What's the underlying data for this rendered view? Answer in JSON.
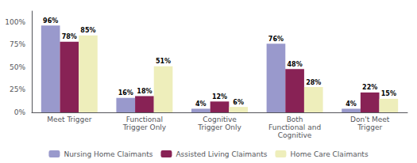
{
  "chart_data": {
    "type": "bar",
    "categories": [
      "Meet Trigger",
      "Functional\nTrigger Only",
      "Cognitive\nTrigger Only",
      "Both\nFunctional and\nCognitive",
      "Don't Meet\nTrigger"
    ],
    "series": [
      {
        "name": "Nursing Home Claimants",
        "color": "#9999CC",
        "values": [
          96,
          16,
          4,
          76,
          4
        ],
        "value_labels": [
          "96%",
          "16%",
          "4%",
          "76%",
          "4%"
        ]
      },
      {
        "name": "Assisted Living Claimants",
        "color": "#882255",
        "values": [
          78,
          18,
          12,
          48,
          22
        ],
        "value_labels": [
          "78%",
          "18%",
          "12%",
          "48%",
          "22%"
        ]
      },
      {
        "name": "Home Care Claimants",
        "color": "#EEEEBB",
        "values": [
          85,
          51,
          6,
          28,
          15
        ],
        "value_labels": [
          "85%",
          "51%",
          "6%",
          "28%",
          "15%"
        ]
      }
    ],
    "ylim": [
      0,
      112
    ],
    "yticks": [
      {
        "value": 0,
        "label": "0%"
      },
      {
        "value": 25,
        "label": "25%"
      },
      {
        "value": 50,
        "label": "50%"
      },
      {
        "value": 75,
        "label": "75%"
      },
      {
        "value": 100,
        "label": "100%"
      }
    ],
    "grid": false,
    "legend": "bottom",
    "data_labels": true
  }
}
